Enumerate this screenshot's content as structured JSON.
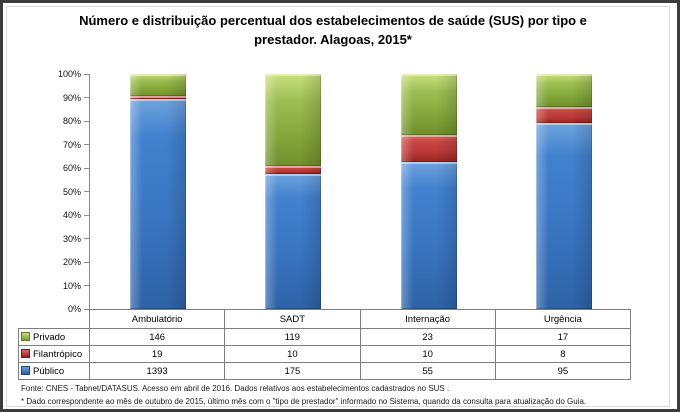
{
  "title_lines": [
    "Número e distribuição percentual dos estabelecimentos de saúde (SUS) por tipo e",
    "prestador.  Alagoas, 2015*"
  ],
  "chart_data": {
    "type": "bar",
    "subtype": "stacked-100-percent",
    "title": "Número e distribuição percentual dos estabelecimentos de saúde (SUS) por tipo e prestador. Alagoas, 2015*",
    "categories": [
      "Ambulatório",
      "SADT",
      "Internação",
      "Urgência"
    ],
    "series": [
      {
        "name": "Privado",
        "color": "#85A83C",
        "values": [
          146,
          119,
          23,
          17
        ]
      },
      {
        "name": "Filantrópico",
        "color": "#BC3A37",
        "values": [
          19,
          10,
          10,
          8
        ]
      },
      {
        "name": "Público",
        "color": "#3A76C2",
        "values": [
          1393,
          175,
          55,
          95
        ]
      }
    ],
    "stack_order_bottom_to_top": [
      "Público",
      "Filantrópico",
      "Privado"
    ],
    "y_axis": {
      "min": 0,
      "max": 100,
      "tick_labels": [
        "0%",
        "10%",
        "20%",
        "30%",
        "40%",
        "50%",
        "60%",
        "70%",
        "80%",
        "90%",
        "100%"
      ]
    },
    "gridlines": false,
    "legend_position": "data-table-left-column",
    "axis_color": "#8c8c8c",
    "table_border_color": "#7f7f7f"
  },
  "footer": {
    "source": "Fonte: CNES - Tabnet/DATASUS. Acesso em abril de 2016.  Dados relativos aos estabelecimentos cadastrados no SUS .",
    "note": "* Dado correspondente ao mês de  outubro de 2015, último mês com o \"tipo de prestador\" informado no Sistema, quando da consulta para atualização do Guia."
  }
}
